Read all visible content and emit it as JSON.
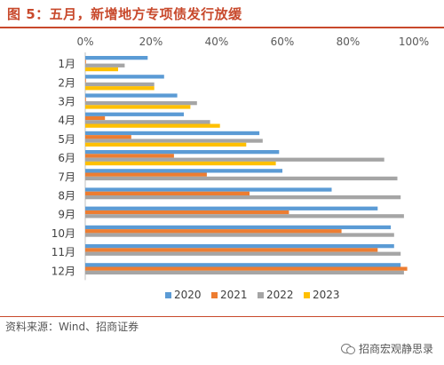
{
  "header": {
    "title": "图 5：五月，新增地方专项债发行放缓"
  },
  "footer": {
    "source": "资料来源：Wind、招商证券",
    "watermark": "招商宏观静思录"
  },
  "colors": {
    "title": "#c8492c",
    "series_2020": "#5b9bd5",
    "series_2021": "#ed7d31",
    "series_2022": "#a5a5a5",
    "series_2023": "#ffc000"
  },
  "chart_data": {
    "type": "bar",
    "orientation": "horizontal",
    "categories": [
      "1月",
      "2月",
      "3月",
      "4月",
      "5月",
      "6月",
      "7月",
      "8月",
      "9月",
      "10月",
      "11月",
      "12月"
    ],
    "series": [
      {
        "name": "2020",
        "values": [
          19,
          24,
          28,
          30,
          53,
          59,
          60,
          75,
          89,
          93,
          94,
          96
        ]
      },
      {
        "name": "2021",
        "values": [
          0,
          0,
          0,
          6,
          14,
          27,
          37,
          50,
          62,
          78,
          89,
          98
        ]
      },
      {
        "name": "2022",
        "values": [
          12,
          21,
          34,
          38,
          54,
          91,
          95,
          96,
          97,
          94,
          96,
          97
        ]
      },
      {
        "name": "2023",
        "values": [
          10,
          21,
          32,
          41,
          49,
          58,
          null,
          null,
          null,
          null,
          null,
          null
        ]
      }
    ],
    "xlim": [
      0,
      100
    ],
    "x_ticks": [
      "0%",
      "20%",
      "40%",
      "60%",
      "80%",
      "100%"
    ],
    "x_axis_position": "top",
    "legend_position": "bottom",
    "grid": false
  }
}
